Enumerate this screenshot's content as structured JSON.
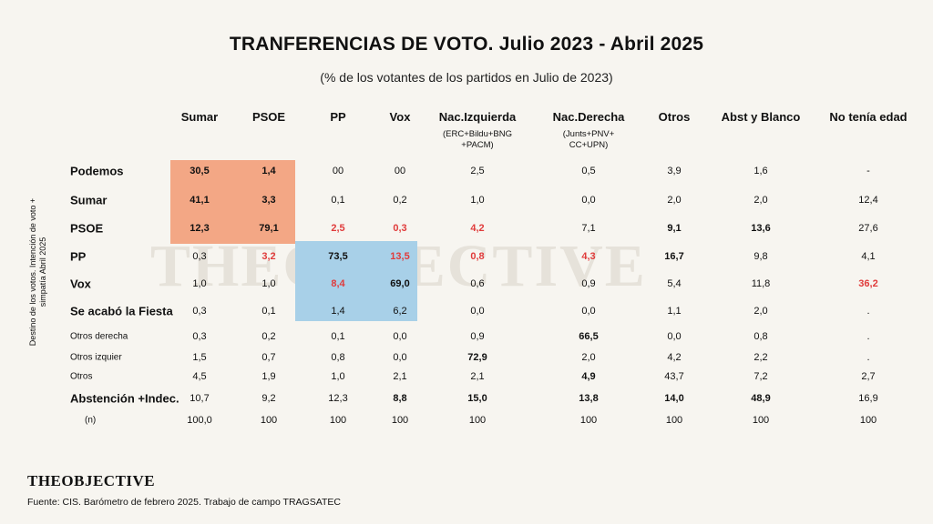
{
  "title": "TRANFERENCIAS DE  VOTO. Julio 2023 - Abril 2025",
  "subtitle": "(% de los votantes de los partidos en Julio de 2023)",
  "watermark": "THEOBJECTIVE",
  "side_label": "Destino de los votos. Intención de voto +\nsimpatía Abril 2025",
  "logo_text": "THEOBJECTIVE",
  "source": "Fuente: CIS. Barómetro de febrero 2025. Trabajo de campo TRAGSATEC",
  "colors": {
    "highlight_orange": "#f3a785",
    "highlight_blue": "#a8d0e8",
    "red": "#e03b3b"
  },
  "chart_data": {
    "type": "table",
    "columns": [
      {
        "label": "Sumar",
        "sub": ""
      },
      {
        "label": "PSOE",
        "sub": ""
      },
      {
        "label": "PP",
        "sub": ""
      },
      {
        "label": "Vox",
        "sub": ""
      },
      {
        "label": "Nac.Izquierda",
        "sub": "(ERC+Bildu+BNG\n+PACM)"
      },
      {
        "label": "Nac.Derecha",
        "sub": "(Junts+PNV+\nCC+UPN)"
      },
      {
        "label": "Otros",
        "sub": ""
      },
      {
        "label": "Abst y Blanco",
        "sub": ""
      },
      {
        "label": "No tenía edad",
        "sub": ""
      }
    ],
    "rows": [
      {
        "label": "Podemos",
        "style": "bold",
        "values": [
          "30,5",
          "1,4",
          "00",
          "00",
          "2,5",
          "0,5",
          "3,9",
          "1,6",
          "-"
        ],
        "emphasis": [
          "b",
          "b",
          "",
          "",
          "",
          "",
          "",
          "",
          ""
        ]
      },
      {
        "label": "Sumar",
        "style": "bold",
        "values": [
          "41,1",
          "3,3",
          "0,1",
          "0,2",
          "1,0",
          "0,0",
          "2,0",
          "2,0",
          "12,4"
        ],
        "emphasis": [
          "b",
          "b",
          "",
          "",
          "",
          "",
          "",
          "",
          ""
        ]
      },
      {
        "label": "PSOE",
        "style": "bold",
        "values": [
          "12,3",
          "79,1",
          "2,5",
          "0,3",
          "4,2",
          "7,1",
          "9,1",
          "13,6",
          "27,6"
        ],
        "emphasis": [
          "b",
          "b",
          "r",
          "r",
          "r",
          "",
          "b",
          "b",
          ""
        ]
      },
      {
        "label": "PP",
        "style": "bold",
        "values": [
          "0,3",
          "3,2",
          "73,5",
          "13,5",
          "0,8",
          "4,3",
          "16,7",
          "9,8",
          "4,1"
        ],
        "emphasis": [
          "",
          "r",
          "b",
          "r",
          "r",
          "r",
          "b",
          "",
          ""
        ]
      },
      {
        "label": "Vox",
        "style": "bold",
        "values": [
          "1,0",
          "1,0",
          "8,4",
          "69,0",
          "0,6",
          "0,9",
          "5,4",
          "11,8",
          "36,2"
        ],
        "emphasis": [
          "",
          "",
          "r",
          "b",
          "",
          "",
          "",
          "",
          "r"
        ]
      },
      {
        "label": "Se acabó la Fiesta",
        "style": "bold",
        "values": [
          "0,3",
          "0,1",
          "1,4",
          "6,2",
          "0,0",
          "0,0",
          "1,1",
          "2,0",
          "."
        ],
        "emphasis": [
          "",
          "",
          "",
          "",
          "",
          "",
          "",
          "",
          ""
        ]
      },
      {
        "label": "Otros derecha",
        "style": "small",
        "values": [
          "0,3",
          "0,2",
          "0,1",
          "0,0",
          "0,9",
          "66,5",
          "0,0",
          "0,8",
          "."
        ],
        "emphasis": [
          "",
          "",
          "",
          "",
          "",
          "b",
          "",
          "",
          ""
        ]
      },
      {
        "label": "Otros izquier",
        "style": "small",
        "values": [
          "1,5",
          "0,7",
          "0,8",
          "0,0",
          "72,9",
          "2,0",
          "4,2",
          "2,2",
          "."
        ],
        "emphasis": [
          "",
          "",
          "",
          "",
          "b",
          "",
          "",
          "",
          ""
        ]
      },
      {
        "label": "Otros",
        "style": "small",
        "values": [
          "4,5",
          "1,9",
          "1,0",
          "2,1",
          "2,1",
          "4,9",
          "43,7",
          "7,2",
          "2,7"
        ],
        "emphasis": [
          "",
          "",
          "",
          "",
          "",
          "b",
          "",
          "",
          ""
        ]
      },
      {
        "label": "Abstención +Indec.",
        "style": "bold",
        "values": [
          "10,7",
          "9,2",
          "12,3",
          "8,8",
          "15,0",
          "13,8",
          "14,0",
          "48,9",
          "16,9"
        ],
        "emphasis": [
          "",
          "",
          "",
          "b",
          "b",
          "b",
          "b",
          "b",
          ""
        ]
      },
      {
        "label": "(n)",
        "style": "n",
        "values": [
          "100,0",
          "100",
          "100",
          "100",
          "100",
          "100",
          "100",
          "100",
          "100"
        ],
        "emphasis": [
          "",
          "",
          "",
          "",
          "",
          "",
          "",
          "",
          ""
        ]
      }
    ]
  }
}
